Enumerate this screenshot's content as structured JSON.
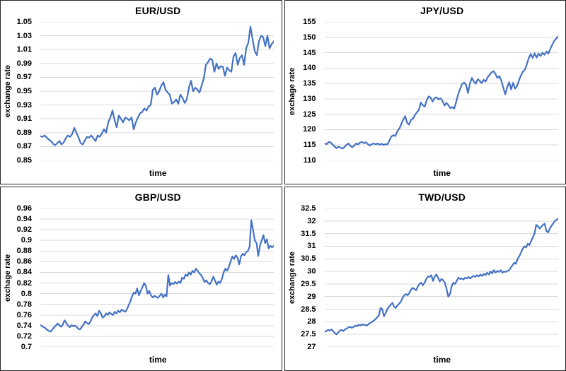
{
  "page": {
    "background": "#ffffff",
    "panel_border_color": "#262626",
    "grid_color": "#d9d9d9",
    "accent_line_color": "#4472C4"
  },
  "chart_data": [
    {
      "type": "line",
      "title": "EUR/USD",
      "xlabel": "time",
      "ylabel": "exchange rate",
      "ylim": [
        0.85,
        1.05
      ],
      "ytick_step": 0.02,
      "grid": true,
      "legend": "none",
      "line_color": "#4472C4",
      "grid_color": "#d9d9d9",
      "values": [
        0.885,
        0.884,
        0.886,
        0.883,
        0.88,
        0.878,
        0.874,
        0.872,
        0.875,
        0.878,
        0.873,
        0.876,
        0.882,
        0.886,
        0.884,
        0.888,
        0.897,
        0.89,
        0.883,
        0.875,
        0.873,
        0.879,
        0.884,
        0.883,
        0.886,
        0.882,
        0.878,
        0.886,
        0.884,
        0.889,
        0.895,
        0.89,
        0.905,
        0.912,
        0.922,
        0.908,
        0.898,
        0.915,
        0.91,
        0.905,
        0.912,
        0.91,
        0.908,
        0.912,
        0.895,
        0.905,
        0.912,
        0.918,
        0.92,
        0.925,
        0.922,
        0.928,
        0.93,
        0.952,
        0.955,
        0.945,
        0.95,
        0.958,
        0.963,
        0.952,
        0.948,
        0.945,
        0.932,
        0.934,
        0.938,
        0.932,
        0.945,
        0.94,
        0.933,
        0.938,
        0.955,
        0.965,
        0.95,
        0.955,
        0.952,
        0.948,
        0.958,
        0.968,
        0.988,
        0.992,
        0.997,
        0.995,
        0.978,
        0.99,
        0.982,
        0.986,
        0.985,
        0.972,
        0.984,
        0.98,
        0.978,
        1.0,
        1.005,
        0.988,
        0.998,
        1.002,
        0.988,
        1.012,
        1.02,
        1.043,
        1.025,
        1.008,
        1.002,
        1.022,
        1.03,
        1.028,
        1.015,
        1.03,
        1.012,
        1.018,
        1.022
      ]
    },
    {
      "type": "line",
      "title": "JPY/USD",
      "xlabel": "time",
      "ylabel": "exchage rate",
      "ylim": [
        110,
        155
      ],
      "ytick_step": 5,
      "grid": true,
      "legend": "none",
      "line_color": "#4472C4",
      "grid_color": "#d9d9d9",
      "values": [
        115.5,
        115.3,
        116.0,
        115.8,
        115.2,
        114.5,
        114.0,
        114.5,
        114.2,
        113.8,
        114.3,
        115.0,
        115.5,
        114.8,
        114.3,
        114.8,
        115.5,
        115.2,
        115.8,
        116.0,
        115.6,
        115.9,
        115.3,
        114.8,
        115.3,
        115.5,
        115.2,
        115.5,
        115.1,
        115.4,
        115.0,
        115.3,
        115.2,
        116.5,
        117.8,
        118.2,
        117.9,
        119.5,
        120.3,
        121.8,
        123.2,
        124.4,
        122.2,
        121.6,
        123.2,
        123.6,
        124.8,
        125.6,
        126.5,
        128.8,
        127.9,
        127.5,
        129.6,
        130.8,
        130.4,
        129.1,
        130.3,
        130.5,
        129.8,
        130.2,
        129.4,
        127.8,
        128.7,
        128.0,
        127.0,
        127.3,
        126.8,
        129.0,
        131.5,
        133.2,
        134.8,
        135.3,
        134.6,
        131.9,
        135.0,
        136.8,
        135.6,
        134.9,
        136.4,
        135.8,
        135.1,
        136.2,
        135.6,
        137.0,
        137.8,
        138.6,
        139.0,
        138.1,
        136.8,
        137.4,
        135.9,
        133.6,
        131.5,
        133.8,
        135.4,
        133.1,
        135.2,
        133.3,
        134.1,
        136.0,
        137.6,
        138.9,
        139.5,
        141.2,
        143.3,
        144.6,
        143.3,
        144.8,
        143.4,
        144.7,
        143.9,
        145.0,
        144.3,
        145.4,
        144.7,
        146.3,
        147.6,
        148.9,
        149.6,
        150.3
      ]
    },
    {
      "type": "line",
      "title": "GBP/USD",
      "xlabel": "time",
      "ylabel": "exchage rate",
      "ylim": [
        0.7,
        0.96
      ],
      "ytick_step": 0.02,
      "grid": true,
      "legend": "none",
      "line_color": "#4472C4",
      "grid_color": "#d9d9d9",
      "values": [
        0.741,
        0.739,
        0.737,
        0.735,
        0.732,
        0.73,
        0.729,
        0.733,
        0.737,
        0.74,
        0.744,
        0.741,
        0.738,
        0.742,
        0.75,
        0.745,
        0.74,
        0.737,
        0.741,
        0.739,
        0.74,
        0.738,
        0.734,
        0.733,
        0.738,
        0.742,
        0.748,
        0.745,
        0.743,
        0.748,
        0.755,
        0.76,
        0.763,
        0.758,
        0.768,
        0.763,
        0.755,
        0.757,
        0.763,
        0.76,
        0.765,
        0.762,
        0.76,
        0.766,
        0.763,
        0.768,
        0.765,
        0.77,
        0.768,
        0.766,
        0.77,
        0.778,
        0.785,
        0.795,
        0.802,
        0.8,
        0.81,
        0.797,
        0.805,
        0.812,
        0.82,
        0.815,
        0.8,
        0.805,
        0.797,
        0.793,
        0.796,
        0.794,
        0.792,
        0.796,
        0.8,
        0.793,
        0.798,
        0.795,
        0.835,
        0.815,
        0.82,
        0.818,
        0.822,
        0.819,
        0.823,
        0.82,
        0.83,
        0.828,
        0.836,
        0.833,
        0.84,
        0.836,
        0.843,
        0.84,
        0.847,
        0.843,
        0.838,
        0.835,
        0.829,
        0.822,
        0.825,
        0.82,
        0.818,
        0.823,
        0.832,
        0.825,
        0.817,
        0.823,
        0.82,
        0.828,
        0.84,
        0.847,
        0.843,
        0.85,
        0.86,
        0.87,
        0.865,
        0.872,
        0.868,
        0.855,
        0.87,
        0.875,
        0.872,
        0.878,
        0.88,
        0.888,
        0.938,
        0.92,
        0.9,
        0.895,
        0.871,
        0.89,
        0.9,
        0.91,
        0.895,
        0.902,
        0.885,
        0.89,
        0.887,
        0.89
      ]
    },
    {
      "type": "line",
      "title": "TWD/USD",
      "xlabel": "time",
      "ylabel": "exchange rate",
      "ylim": [
        27,
        32.5
      ],
      "ytick_step": 0.5,
      "grid": true,
      "legend": "none",
      "line_color": "#4472C4",
      "grid_color": "#d9d9d9",
      "values": [
        27.6,
        27.63,
        27.68,
        27.65,
        27.7,
        27.62,
        27.55,
        27.5,
        27.58,
        27.65,
        27.68,
        27.63,
        27.7,
        27.73,
        27.78,
        27.8,
        27.76,
        27.8,
        27.85,
        27.82,
        27.88,
        27.85,
        27.9,
        27.87,
        27.88,
        27.85,
        27.92,
        27.95,
        28.0,
        28.05,
        28.1,
        28.18,
        28.25,
        28.55,
        28.5,
        28.22,
        28.35,
        28.5,
        28.6,
        28.68,
        28.75,
        28.6,
        28.55,
        28.65,
        28.72,
        28.8,
        28.95,
        29.05,
        29.1,
        29.05,
        29.15,
        29.28,
        29.35,
        29.3,
        29.25,
        29.4,
        29.5,
        29.55,
        29.45,
        29.55,
        29.7,
        29.8,
        29.78,
        29.85,
        29.62,
        29.8,
        29.88,
        29.75,
        29.6,
        29.7,
        29.65,
        29.55,
        29.3,
        29.0,
        29.1,
        29.4,
        29.55,
        29.5,
        29.62,
        29.75,
        29.7,
        29.72,
        29.68,
        29.75,
        29.72,
        29.78,
        29.72,
        29.78,
        29.82,
        29.78,
        29.85,
        29.8,
        29.88,
        29.82,
        29.9,
        29.85,
        29.95,
        29.88,
        30.0,
        29.92,
        30.05,
        29.95,
        30.02,
        29.98,
        30.05,
        29.95,
        30.0,
        29.98,
        30.02,
        30.05,
        30.15,
        30.25,
        30.35,
        30.3,
        30.5,
        30.6,
        30.75,
        30.9,
        31.0,
        30.95,
        31.1,
        31.05,
        31.2,
        31.35,
        31.5,
        31.85,
        31.8,
        31.7,
        31.78,
        31.85,
        31.9,
        31.6,
        31.55,
        31.7,
        31.8,
        31.9,
        32.0,
        32.05,
        32.1
      ]
    }
  ]
}
